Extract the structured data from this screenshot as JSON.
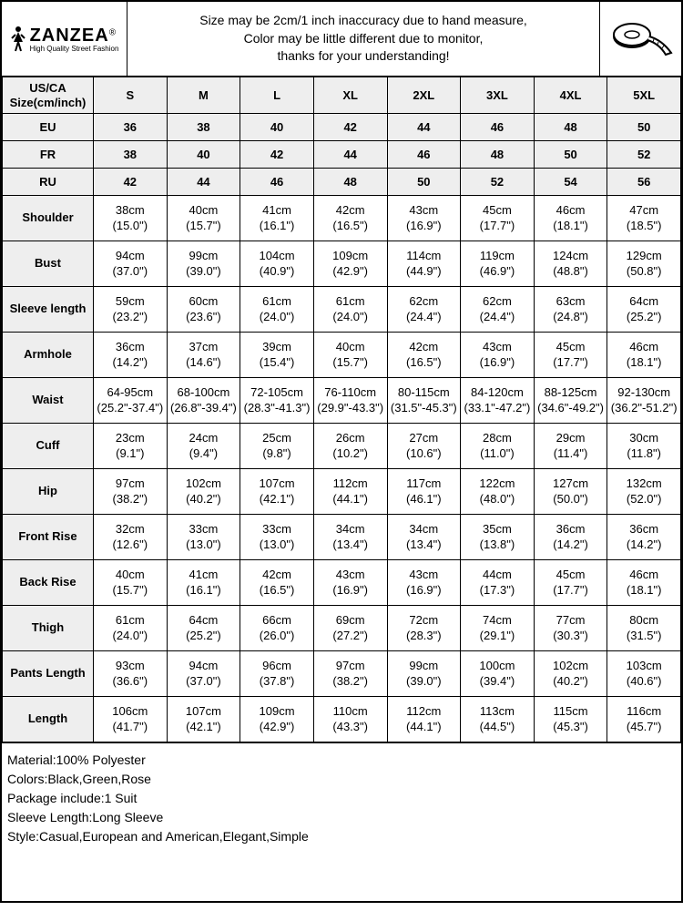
{
  "brand": {
    "name": "ZANZEA",
    "registered": "®",
    "tagline": "High Quality Street Fashion"
  },
  "note": {
    "l1": "Size may be 2cm/1 inch inaccuracy due to hand measure,",
    "l2": "Color may be little different due to monitor,",
    "l3": "thanks for your understanding!"
  },
  "headers": {
    "row_label_l1": "US/CA",
    "row_label_l2": "Size(cm/inch)",
    "sizes": [
      "S",
      "M",
      "L",
      "XL",
      "2XL",
      "3XL",
      "4XL",
      "5XL"
    ]
  },
  "regions": [
    {
      "label": "EU",
      "vals": [
        "36",
        "38",
        "40",
        "42",
        "44",
        "46",
        "48",
        "50"
      ]
    },
    {
      "label": "FR",
      "vals": [
        "38",
        "40",
        "42",
        "44",
        "46",
        "48",
        "50",
        "52"
      ]
    },
    {
      "label": "RU",
      "vals": [
        "42",
        "44",
        "46",
        "48",
        "50",
        "52",
        "54",
        "56"
      ]
    }
  ],
  "measurements": [
    {
      "label": "Shoulder",
      "rows": [
        [
          "38cm",
          "40cm",
          "41cm",
          "42cm",
          "43cm",
          "45cm",
          "46cm",
          "47cm"
        ],
        [
          "(15.0\")",
          "(15.7\")",
          "(16.1\")",
          "(16.5\")",
          "(16.9\")",
          "(17.7\")",
          "(18.1\")",
          "(18.5\")"
        ]
      ]
    },
    {
      "label": "Bust",
      "rows": [
        [
          "94cm",
          "99cm",
          "104cm",
          "109cm",
          "114cm",
          "119cm",
          "124cm",
          "129cm"
        ],
        [
          "(37.0\")",
          "(39.0\")",
          "(40.9\")",
          "(42.9\")",
          "(44.9\")",
          "(46.9\")",
          "(48.8\")",
          "(50.8\")"
        ]
      ]
    },
    {
      "label": "Sleeve length",
      "rows": [
        [
          "59cm",
          "60cm",
          "61cm",
          "61cm",
          "62cm",
          "62cm",
          "63cm",
          "64cm"
        ],
        [
          "(23.2\")",
          "(23.6\")",
          "(24.0\")",
          "(24.0\")",
          "(24.4\")",
          "(24.4\")",
          "(24.8\")",
          "(25.2\")"
        ]
      ]
    },
    {
      "label": "Armhole",
      "rows": [
        [
          "36cm",
          "37cm",
          "39cm",
          "40cm",
          "42cm",
          "43cm",
          "45cm",
          "46cm"
        ],
        [
          "(14.2\")",
          "(14.6\")",
          "(15.4\")",
          "(15.7\")",
          "(16.5\")",
          "(16.9\")",
          "(17.7\")",
          "(18.1\")"
        ]
      ]
    },
    {
      "label": "Waist",
      "rows": [
        [
          "64-95cm",
          "68-100cm",
          "72-105cm",
          "76-110cm",
          "80-115cm",
          "84-120cm",
          "88-125cm",
          "92-130cm"
        ],
        [
          "(25.2\"-37.4\")",
          "(26.8\"-39.4\")",
          "(28.3\"-41.3\")",
          "(29.9\"-43.3\")",
          "(31.5\"-45.3\")",
          "(33.1\"-47.2\")",
          "(34.6\"-49.2\")",
          "(36.2\"-51.2\")"
        ]
      ]
    },
    {
      "label": "Cuff",
      "rows": [
        [
          "23cm",
          "24cm",
          "25cm",
          "26cm",
          "27cm",
          "28cm",
          "29cm",
          "30cm"
        ],
        [
          "(9.1\")",
          "(9.4\")",
          "(9.8\")",
          "(10.2\")",
          "(10.6\")",
          "(11.0\")",
          "(11.4\")",
          "(11.8\")"
        ]
      ]
    },
    {
      "label": "Hip",
      "rows": [
        [
          "97cm",
          "102cm",
          "107cm",
          "112cm",
          "117cm",
          "122cm",
          "127cm",
          "132cm"
        ],
        [
          "(38.2\")",
          "(40.2\")",
          "(42.1\")",
          "(44.1\")",
          "(46.1\")",
          "(48.0\")",
          "(50.0\")",
          "(52.0\")"
        ]
      ]
    },
    {
      "label": "Front Rise",
      "rows": [
        [
          "32cm",
          "33cm",
          "33cm",
          "34cm",
          "34cm",
          "35cm",
          "36cm",
          "36cm"
        ],
        [
          "(12.6\")",
          "(13.0\")",
          "(13.0\")",
          "(13.4\")",
          "(13.4\")",
          "(13.8\")",
          "(14.2\")",
          "(14.2\")"
        ]
      ]
    },
    {
      "label": "Back Rise",
      "rows": [
        [
          "40cm",
          "41cm",
          "42cm",
          "43cm",
          "43cm",
          "44cm",
          "45cm",
          "46cm"
        ],
        [
          "(15.7\")",
          "(16.1\")",
          "(16.5\")",
          "(16.9\")",
          "(16.9\")",
          "(17.3\")",
          "(17.7\")",
          "(18.1\")"
        ]
      ]
    },
    {
      "label": "Thigh",
      "rows": [
        [
          "61cm",
          "64cm",
          "66cm",
          "69cm",
          "72cm",
          "74cm",
          "77cm",
          "80cm"
        ],
        [
          "(24.0\")",
          "(25.2\")",
          "(26.0\")",
          "(27.2\")",
          "(28.3\")",
          "(29.1\")",
          "(30.3\")",
          "(31.5\")"
        ]
      ]
    },
    {
      "label": "Pants Length",
      "rows": [
        [
          "93cm",
          "94cm",
          "96cm",
          "97cm",
          "99cm",
          "100cm",
          "102cm",
          "103cm"
        ],
        [
          "(36.6\")",
          "(37.0\")",
          "(37.8\")",
          "(38.2\")",
          "(39.0\")",
          "(39.4\")",
          "(40.2\")",
          "(40.6\")"
        ]
      ]
    },
    {
      "label": "Length",
      "rows": [
        [
          "106cm",
          "107cm",
          "109cm",
          "110cm",
          "112cm",
          "113cm",
          "115cm",
          "116cm"
        ],
        [
          "(41.7\")",
          "(42.1\")",
          "(42.9\")",
          "(43.3\")",
          "(44.1\")",
          "(44.5\")",
          "(45.3\")",
          "(45.7\")"
        ]
      ]
    }
  ],
  "footer": {
    "l1": "Material:100% Polyester",
    "l2": "Colors:Black,Green,Rose",
    "l3": "Package include:1 Suit",
    "l4": "Sleeve Length:Long Sleeve",
    "l5": "Style:Casual,European and American,Elegant,Simple"
  }
}
